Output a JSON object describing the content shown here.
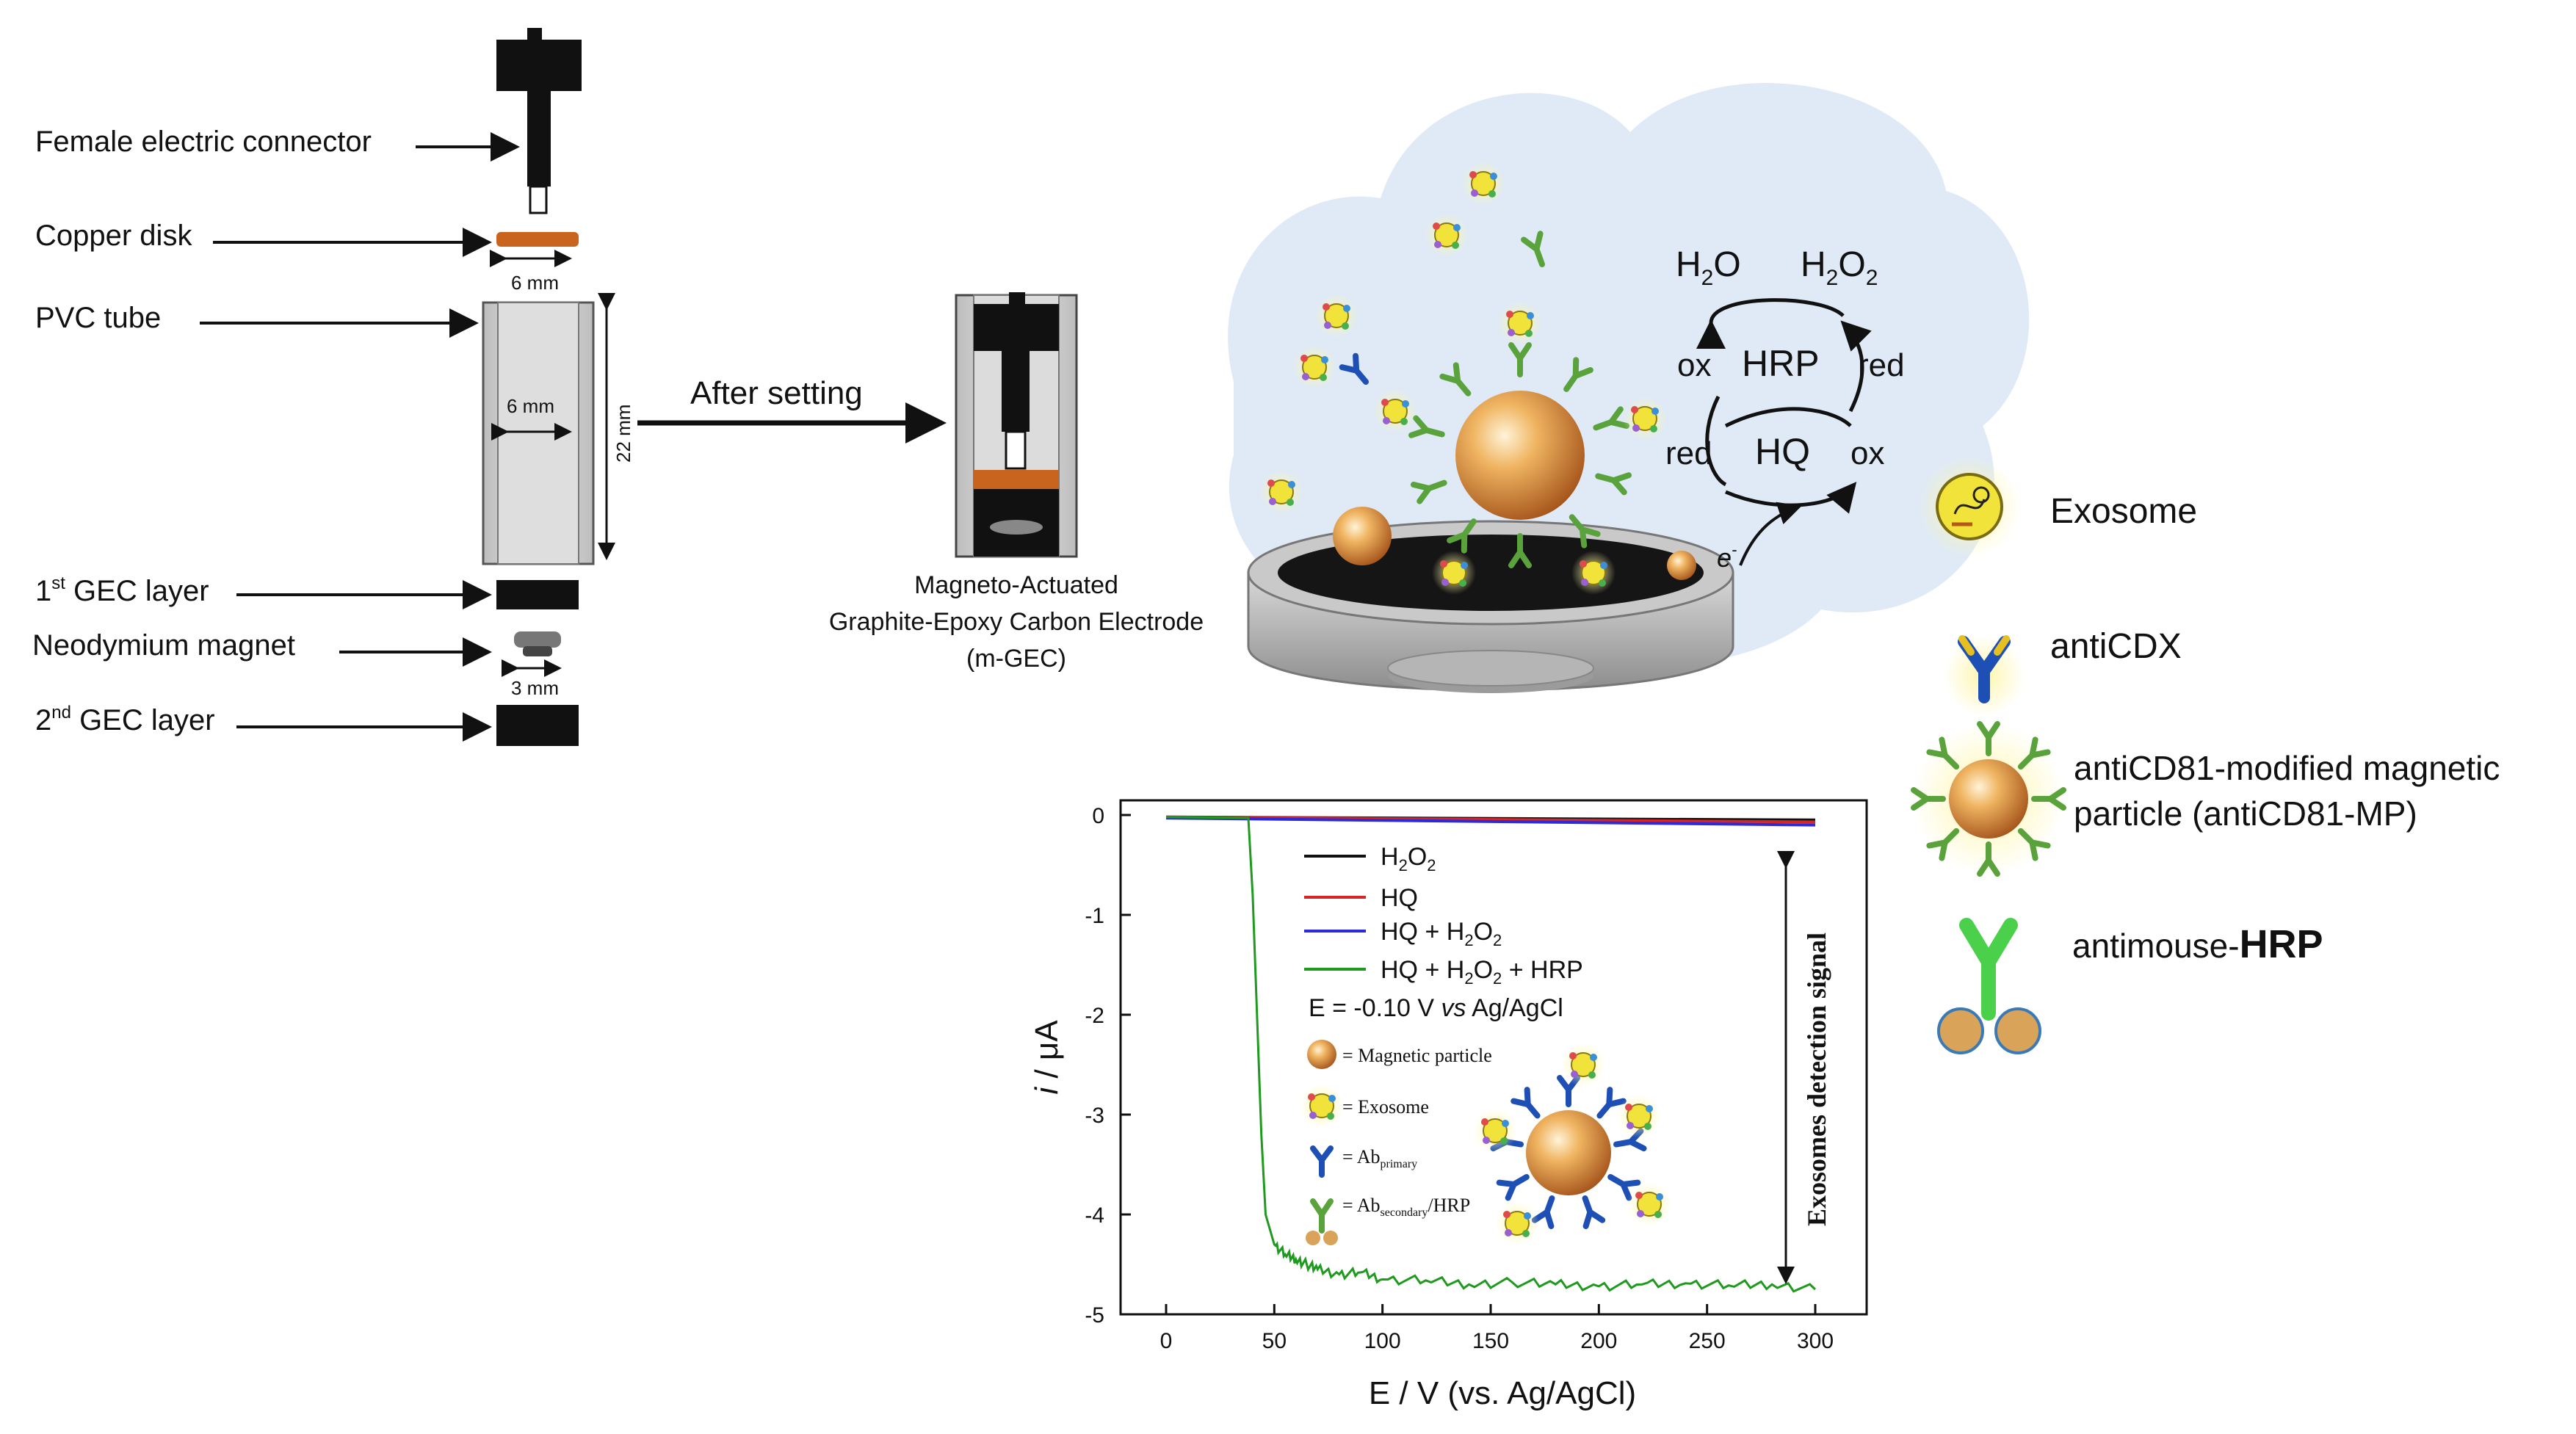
{
  "electrode": {
    "female_connector": "Female electric connector",
    "copper_disk": "Copper disk",
    "copper_dim": "6 mm",
    "pvc_tube": "PVC tube",
    "pvc_inner_dim": "6 mm",
    "pvc_height_dim": "22 mm",
    "gec1_num": "1",
    "gec1_sup": "st",
    "gec1_rest": " GEC layer",
    "neodymium": "Neodymium  magnet",
    "magnet_dim": "3 mm",
    "gec2_num": "2",
    "gec2_sup": "nd",
    "gec2_rest": " GEC layer"
  },
  "arrow_label": "After setting",
  "mgec": {
    "line1": "Magneto-Actuated",
    "line2": "Graphite-Epoxy Carbon Electrode",
    "line3": "(m-GEC)"
  },
  "reaction": {
    "h2o": "H",
    "h2o_sub": "2",
    "h2o_end": "O",
    "h2o2": "H",
    "h2o2_sub1": "2",
    "h2o2_mid": "O",
    "h2o2_sub2": "2",
    "ox_left": "ox",
    "hrp": "HRP",
    "red_right": "red",
    "red_left": "red",
    "hq": "HQ",
    "ox_right": "ox",
    "electron": "e",
    "electron_sup": "-"
  },
  "legend_right": {
    "exosome": "Exosome",
    "anticdx": "antiCDX",
    "mp_line1": "antiCD81-modified magnetic",
    "mp_line2": "particle (antiCD81-MP)",
    "antimouse": "antimouse-",
    "antimouse_hrp": "HRP"
  },
  "chart_data": {
    "type": "line",
    "xlabel": "E / V (vs. Ag/AgCl)",
    "ylabel_italic": "i",
    "ylabel_rest": " / μA",
    "xlim": [
      0,
      300
    ],
    "ylim": [
      -5,
      0
    ],
    "x_ticks": [
      "0",
      "50",
      "100",
      "150",
      "200",
      "250",
      "300"
    ],
    "y_ticks": [
      "0",
      "-1",
      "-2",
      "-3",
      "-4",
      "-5"
    ],
    "series": [
      {
        "name": "H2O2",
        "color": "#111111",
        "x": [
          0,
          300
        ],
        "y": [
          -0.02,
          -0.05
        ]
      },
      {
        "name": "HQ",
        "color": "#d62728",
        "x": [
          0,
          300
        ],
        "y": [
          -0.02,
          -0.07
        ]
      },
      {
        "name": "HQ + H2O2",
        "color": "#2b2bd9",
        "x": [
          0,
          300
        ],
        "y": [
          -0.03,
          -0.1
        ]
      },
      {
        "name": "HQ + H2O2 + HRP",
        "color": "#1f9a1f",
        "x": [
          0,
          38,
          40,
          42,
          44,
          46,
          50,
          55,
          60,
          65,
          70,
          80,
          90,
          100,
          120,
          140,
          160,
          180,
          200,
          220,
          240,
          260,
          280,
          300
        ],
        "y": [
          -0.02,
          -0.03,
          -0.8,
          -2.0,
          -3.2,
          -4.0,
          -4.3,
          -4.4,
          -4.45,
          -4.5,
          -4.55,
          -4.6,
          -4.58,
          -4.65,
          -4.66,
          -4.7,
          -4.68,
          -4.7,
          -4.72,
          -4.7,
          -4.69,
          -4.71,
          -4.7,
          -4.75
        ]
      }
    ],
    "legend": {
      "h2o2": "H",
      "h2o2_sub1": "2",
      "h2o2_mid": "O",
      "h2o2_sub2": "2",
      "hq": "HQ",
      "hqh2o2_a": "HQ + H",
      "hqh2o2_sub1": "2",
      "hqh2o2_mid": "O",
      "hqh2o2_sub2": "2",
      "hrp_a": "HQ + H",
      "hrp_sub1": "2",
      "hrp_mid": "O",
      "hrp_sub2": "2",
      "hrp_end": " + HRP",
      "potential_a": "E = -0.10 V ",
      "potential_vs": "vs",
      "potential_b": " Ag/AgCl"
    },
    "inset": {
      "magnetic": "= Magnetic  particle",
      "exosome": "= Exosome",
      "ab_primary": "= Ab",
      "ab_primary_sub": "primary",
      "ab_secondary": "= Ab",
      "ab_secondary_sub": "secondary",
      "ab_secondary_end": "/HRP"
    },
    "annotation": "Exosomes detection signal"
  },
  "colors": {
    "copper": "#c8641e",
    "cloud": "#dfeaf6",
    "sphere_light": "#f4c27a",
    "sphere_dark": "#b5601a",
    "antibody_green": "#5aa33c",
    "antibody_blue": "#1e4fb5",
    "exosome_yellow": "#f2e33a"
  }
}
